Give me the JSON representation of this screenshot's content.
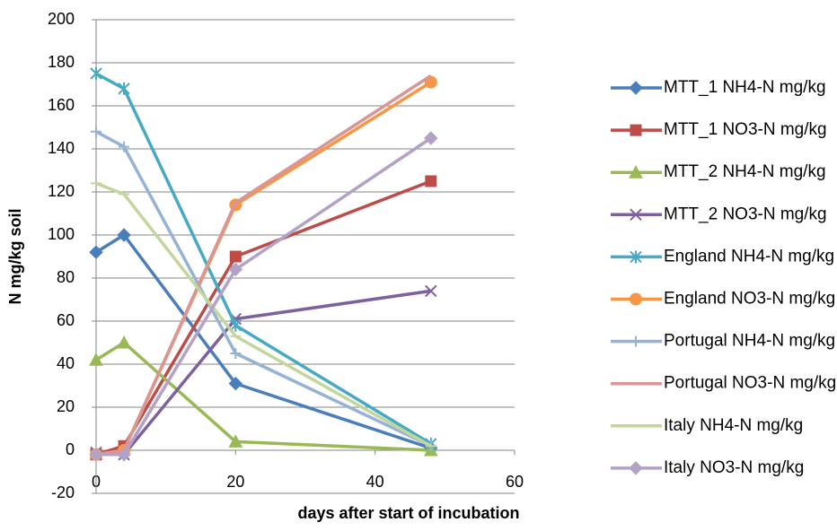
{
  "chart_data": {
    "type": "line",
    "x": [
      0,
      4,
      20,
      48
    ],
    "xlabel": "days after start of incubation",
    "ylabel": "N mg/kg soil",
    "xlim": [
      0,
      60
    ],
    "xticks": [
      0,
      20,
      40,
      60
    ],
    "ylim": [
      -20,
      200
    ],
    "yticks": [
      -20,
      0,
      20,
      40,
      60,
      80,
      100,
      120,
      140,
      160,
      180,
      200
    ],
    "grid": true,
    "legend": "right",
    "series": [
      {
        "name": "MTT_1 NH4-N mg/kg",
        "color": "#4a7ebb",
        "marker": "diamond",
        "values": [
          92,
          100,
          31,
          1
        ]
      },
      {
        "name": "MTT_1 NO3-N mg/kg",
        "color": "#be4b48",
        "marker": "square",
        "values": [
          -2,
          2,
          90,
          125
        ]
      },
      {
        "name": "MTT_2 NH4-N mg/kg",
        "color": "#98b954",
        "marker": "triangle",
        "values": [
          42,
          50,
          4,
          0
        ]
      },
      {
        "name": "MTT_2 NO3-N mg/kg",
        "color": "#7d60a0",
        "marker": "x",
        "values": [
          -1,
          -2,
          61,
          74
        ]
      },
      {
        "name": "England NH4-N mg/kg",
        "color": "#46aac5",
        "marker": "star",
        "values": [
          175,
          168,
          58,
          3
        ]
      },
      {
        "name": "England NO3-N mg/kg",
        "color": "#f79646",
        "marker": "circle",
        "values": [
          -2,
          0,
          114,
          171
        ]
      },
      {
        "name": "Portugal NH4-N mg/kg",
        "color": "#95b3d7",
        "marker": "plus",
        "values": [
          148,
          141,
          45,
          2
        ]
      },
      {
        "name": "Portugal NO3-N mg/kg",
        "color": "#d99694",
        "marker": "none",
        "values": [
          -2,
          0,
          115,
          174
        ]
      },
      {
        "name": "Italy NH4-N mg/kg",
        "color": "#c3d69b",
        "marker": "dash",
        "values": [
          124,
          119,
          53,
          2
        ]
      },
      {
        "name": "Italy NO3-N mg/kg",
        "color": "#b3a2c7",
        "marker": "diamond",
        "values": [
          -2,
          -2,
          84,
          145
        ]
      }
    ]
  }
}
